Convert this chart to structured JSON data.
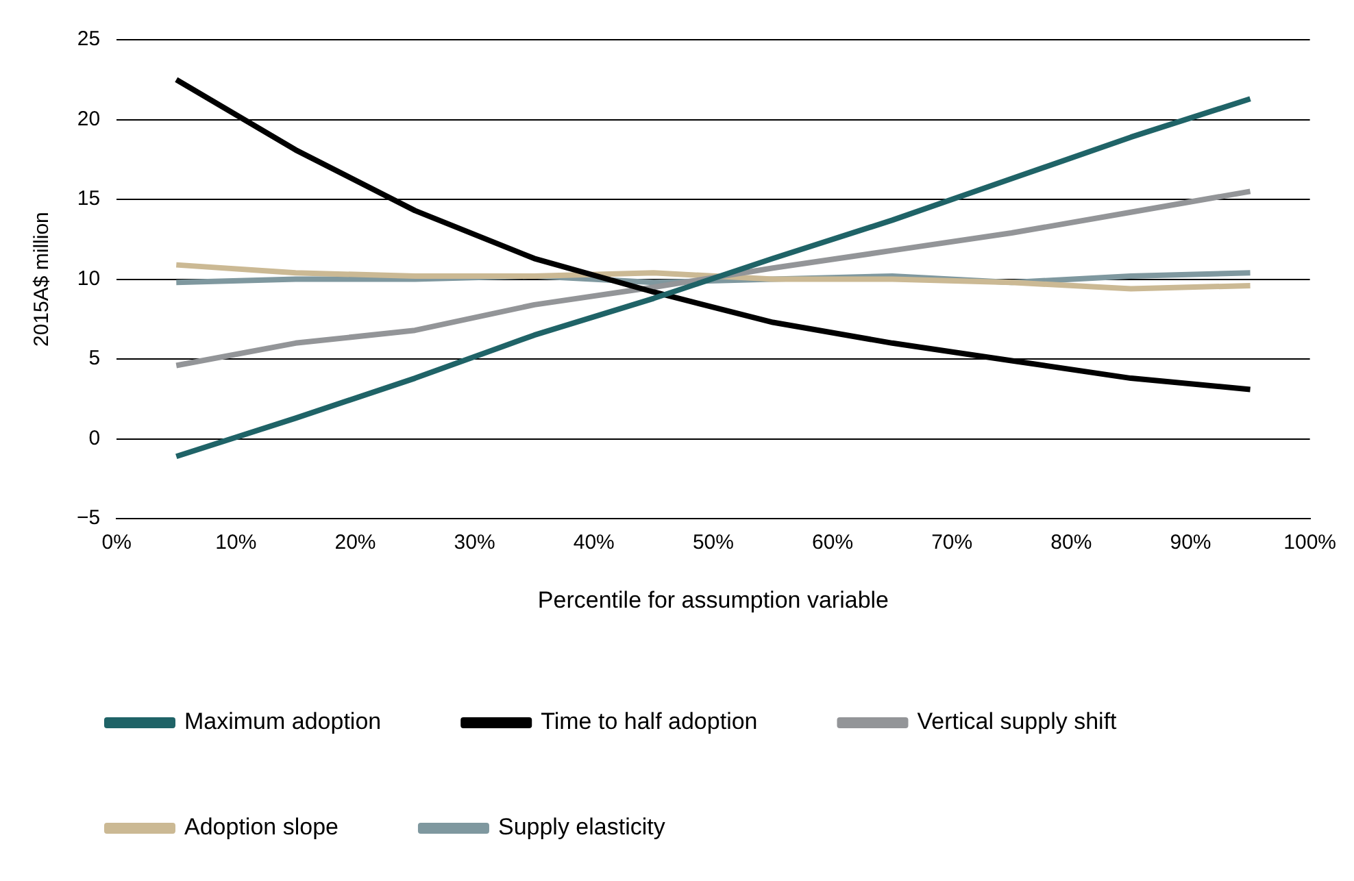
{
  "chart_data": {
    "type": "line",
    "xlabel": "Percentile for assumption variable",
    "ylabel": "2015A$ million",
    "x": [
      5,
      15,
      25,
      35,
      45,
      55,
      65,
      75,
      85,
      95
    ],
    "xlim": [
      0,
      100
    ],
    "xticks": [
      {
        "value": 0,
        "label": "0%"
      },
      {
        "value": 10,
        "label": "10%"
      },
      {
        "value": 20,
        "label": "20%"
      },
      {
        "value": 30,
        "label": "30%"
      },
      {
        "value": 40,
        "label": "40%"
      },
      {
        "value": 50,
        "label": "50%"
      },
      {
        "value": 60,
        "label": "60%"
      },
      {
        "value": 70,
        "label": "70%"
      },
      {
        "value": 80,
        "label": "80%"
      },
      {
        "value": 90,
        "label": "90%"
      },
      {
        "value": 100,
        "label": "100%"
      }
    ],
    "ylim": [
      -5,
      25
    ],
    "yticks": [
      {
        "value": -5,
        "label": "−5"
      },
      0,
      5,
      10,
      15,
      20,
      25
    ],
    "grid": "y",
    "legend": "bottom",
    "marker": "none",
    "line_style": "solid",
    "series": [
      {
        "name": "Maximum adoption",
        "color": "#1f6367",
        "values": [
          -1.1,
          1.3,
          3.8,
          6.5,
          8.8,
          11.3,
          13.7,
          16.3,
          18.9,
          21.3
        ]
      },
      {
        "name": "Time to half adoption",
        "color": "#000000",
        "values": [
          22.5,
          18.1,
          14.3,
          11.3,
          9.2,
          7.3,
          6.0,
          4.9,
          3.8,
          3.1
        ]
      },
      {
        "name": "Vertical supply shift",
        "color": "#939598",
        "values": [
          4.6,
          6.0,
          6.8,
          8.4,
          9.5,
          10.7,
          11.8,
          12.9,
          14.2,
          15.5
        ]
      },
      {
        "name": "Adoption slope",
        "color": "#cbb994",
        "values": [
          10.9,
          10.4,
          10.2,
          10.2,
          10.4,
          10.0,
          10.0,
          9.8,
          9.4,
          9.6
        ]
      },
      {
        "name": "Supply elasticity",
        "color": "#7f989f",
        "values": [
          9.8,
          10.0,
          10.0,
          10.2,
          9.8,
          10.0,
          10.2,
          9.8,
          10.2,
          10.4
        ]
      }
    ]
  }
}
